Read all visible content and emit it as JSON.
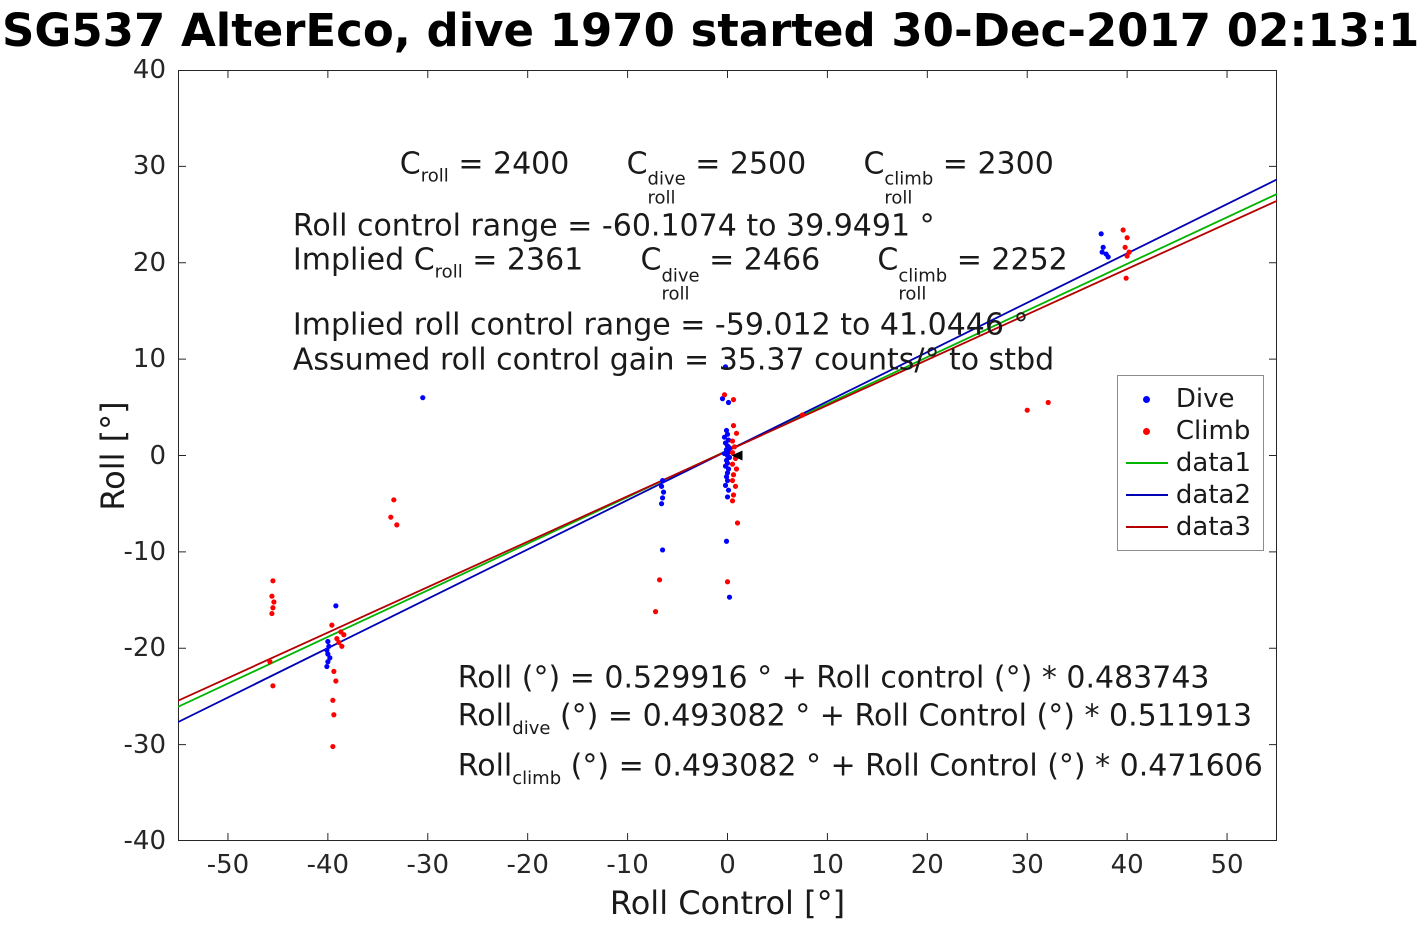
{
  "chart_data": {
    "type": "scatter",
    "title": "SG537 AlterEco, dive 1970 started 30-Dec-2017 02:13:1",
    "xlabel": "Roll Control [°]",
    "ylabel": "Roll [°]",
    "xlim": [
      -55,
      55
    ],
    "ylim": [
      -40,
      40
    ],
    "xticks": [
      -50,
      -40,
      -30,
      -20,
      -10,
      0,
      10,
      20,
      30,
      40,
      50
    ],
    "yticks": [
      -40,
      -30,
      -20,
      -10,
      0,
      10,
      20,
      30,
      40
    ],
    "grid": false,
    "legend_position": "right-middle",
    "series": [
      {
        "name": "Dive",
        "type": "scatter",
        "color": "#0000ff",
        "points": [
          [
            -0.2,
            9.2
          ],
          [
            -0.5,
            5.9
          ],
          [
            0.1,
            5.5
          ],
          [
            -0.1,
            2.6
          ],
          [
            0.0,
            2.2
          ],
          [
            -0.3,
            1.9
          ],
          [
            0.1,
            1.6
          ],
          [
            -0.2,
            1.3
          ],
          [
            0.0,
            1.0
          ],
          [
            0.2,
            0.8
          ],
          [
            -0.1,
            0.6
          ],
          [
            0.1,
            0.4
          ],
          [
            -0.3,
            0.2
          ],
          [
            0.0,
            0.0
          ],
          [
            0.2,
            -0.2
          ],
          [
            -0.1,
            -0.5
          ],
          [
            0.0,
            -0.8
          ],
          [
            -0.2,
            -1.1
          ],
          [
            0.1,
            -1.4
          ],
          [
            0.0,
            -1.8
          ],
          [
            -0.1,
            -2.2
          ],
          [
            0.0,
            -2.6
          ],
          [
            -0.2,
            -3.1
          ],
          [
            0.1,
            -3.6
          ],
          [
            0.0,
            -4.3
          ],
          [
            -0.1,
            -8.9
          ],
          [
            0.2,
            -14.7
          ],
          [
            -6.5,
            -2.6
          ],
          [
            -6.6,
            -3.2
          ],
          [
            -6.4,
            -3.8
          ],
          [
            -6.5,
            -4.4
          ],
          [
            -6.6,
            -5.0
          ],
          [
            -6.5,
            -9.8
          ],
          [
            -39.2,
            -15.6
          ],
          [
            -40.0,
            -19.3
          ],
          [
            -39.9,
            -19.8
          ],
          [
            -40.1,
            -20.2
          ],
          [
            -40.0,
            -20.6
          ],
          [
            -39.8,
            -21.0
          ],
          [
            -40.0,
            -21.4
          ],
          [
            -40.1,
            -21.9
          ],
          [
            -30.5,
            6.0
          ],
          [
            37.4,
            23.0
          ],
          [
            37.6,
            21.6
          ],
          [
            37.5,
            21.1
          ],
          [
            37.9,
            20.9
          ],
          [
            38.1,
            20.6
          ]
        ]
      },
      {
        "name": "Climb",
        "type": "scatter",
        "color": "#ff0000",
        "points": [
          [
            -45.5,
            -13.0
          ],
          [
            -45.6,
            -14.6
          ],
          [
            -45.4,
            -15.2
          ],
          [
            -45.5,
            -15.8
          ],
          [
            -45.6,
            -16.4
          ],
          [
            -45.8,
            -21.4
          ],
          [
            -45.5,
            -23.9
          ],
          [
            -39.6,
            -17.6
          ],
          [
            -38.7,
            -18.3
          ],
          [
            -38.4,
            -18.6
          ],
          [
            -39.1,
            -19.0
          ],
          [
            -38.9,
            -19.4
          ],
          [
            -38.6,
            -19.8
          ],
          [
            -39.4,
            -22.4
          ],
          [
            -39.2,
            -23.4
          ],
          [
            -39.5,
            -25.4
          ],
          [
            -39.4,
            -26.9
          ],
          [
            -39.5,
            -30.2
          ],
          [
            -33.4,
            -4.6
          ],
          [
            -33.7,
            -6.4
          ],
          [
            -33.1,
            -7.2
          ],
          [
            -6.8,
            -12.9
          ],
          [
            -7.2,
            -16.2
          ],
          [
            -0.3,
            6.3
          ],
          [
            0.6,
            5.8
          ],
          [
            0.6,
            3.1
          ],
          [
            0.9,
            2.3
          ],
          [
            0.5,
            1.5
          ],
          [
            0.7,
            0.9
          ],
          [
            0.5,
            0.3
          ],
          [
            0.8,
            -0.3
          ],
          [
            0.5,
            -0.9
          ],
          [
            0.9,
            -1.4
          ],
          [
            0.6,
            -2.0
          ],
          [
            0.5,
            -2.6
          ],
          [
            0.8,
            -3.2
          ],
          [
            0.6,
            -4.1
          ],
          [
            0.5,
            -4.7
          ],
          [
            1.0,
            -7.0
          ],
          [
            0.0,
            -13.1
          ],
          [
            7.5,
            4.2
          ],
          [
            30.0,
            4.7
          ],
          [
            32.1,
            5.5
          ],
          [
            39.6,
            23.4
          ],
          [
            40.0,
            22.6
          ],
          [
            39.8,
            21.6
          ],
          [
            40.2,
            21.1
          ],
          [
            40.0,
            20.7
          ],
          [
            39.9,
            18.4
          ]
        ]
      },
      {
        "name": "data1",
        "type": "line",
        "color": "#00b400",
        "intercept": 0.529916,
        "slope": 0.483743
      },
      {
        "name": "data2",
        "type": "line",
        "color": "#0000b4",
        "intercept": 0.493082,
        "slope": 0.511913
      },
      {
        "name": "data3",
        "type": "line",
        "color": "#b40000",
        "intercept": 0.493082,
        "slope": 0.471606
      }
    ],
    "cursor_marker": {
      "x": 0.9,
      "y": 0.0,
      "shape": "triangle-left",
      "color": "#000000"
    },
    "annotations": [
      {
        "x": -32.8,
        "y": 28.9,
        "segments": [
          {
            "t": "C",
            "sub": "roll"
          },
          {
            "t": " = 2400      "
          },
          {
            "t": "C",
            "sup": "dive",
            "sub": "roll"
          },
          {
            "t": " = 2500      "
          },
          {
            "t": "C",
            "sup": "climb",
            "sub": "roll"
          },
          {
            "t": " = 2300"
          }
        ]
      },
      {
        "x": -43.5,
        "y": 23.8,
        "segments": [
          {
            "t": "Roll control range = -60.1074 to 39.9491 °"
          }
        ]
      },
      {
        "x": -43.5,
        "y": 18.9,
        "segments": [
          {
            "t": "Implied C",
            "sub": "roll"
          },
          {
            "t": " = 2361      "
          },
          {
            "t": "C",
            "sup": "dive",
            "sub": "roll"
          },
          {
            "t": " = 2466      "
          },
          {
            "t": "C",
            "sup": "climb",
            "sub": "roll"
          },
          {
            "t": " = 2252"
          }
        ]
      },
      {
        "x": -43.5,
        "y": 13.5,
        "segments": [
          {
            "t": "Implied roll control range = -59.012 to 41.0446 °"
          }
        ]
      },
      {
        "x": -43.5,
        "y": 9.9,
        "segments": [
          {
            "t": "Assumed roll control gain = 35.37 counts/° to stbd"
          }
        ]
      },
      {
        "x": -27.0,
        "y": -23.1,
        "segments": [
          {
            "t": "Roll (°) = 0.529916 ° + Roll control (°) * 0.483743"
          }
        ]
      },
      {
        "x": -27.0,
        "y": -27.3,
        "segments": [
          {
            "t": "Roll",
            "sub": "dive"
          },
          {
            "t": " (°) = 0.493082 ° + Roll Control (°) * 0.511913"
          }
        ]
      },
      {
        "x": -27.0,
        "y": -32.5,
        "segments": [
          {
            "t": "Roll",
            "sub": "climb"
          },
          {
            "t": " (°) = 0.493082 ° + Roll Control (°) * 0.471606"
          }
        ]
      }
    ]
  },
  "legend": {
    "entries": [
      {
        "label": "Dive",
        "marker": "dot",
        "color": "#0000ff"
      },
      {
        "label": "Climb",
        "marker": "dot",
        "color": "#ff0000"
      },
      {
        "label": "data1",
        "marker": "line",
        "color": "#00b400"
      },
      {
        "label": "data2",
        "marker": "line",
        "color": "#0000b4"
      },
      {
        "label": "data3",
        "marker": "line",
        "color": "#b40000"
      }
    ]
  }
}
